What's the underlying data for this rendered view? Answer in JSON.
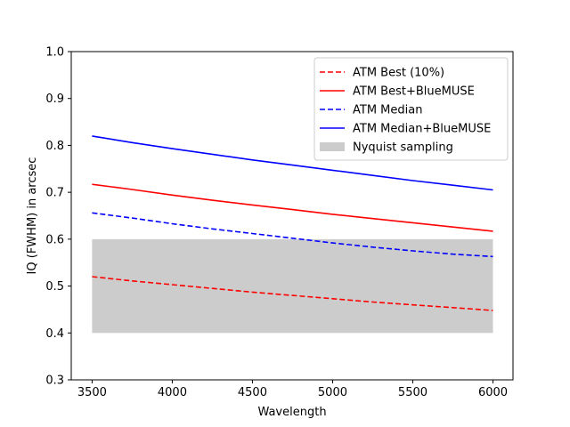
{
  "chart_data": {
    "type": "line",
    "title": "",
    "xlabel": "Wavelength",
    "ylabel": "IQ (FWHM) in arcsec",
    "xlim": [
      3370,
      6125
    ],
    "ylim": [
      0.3,
      1.0
    ],
    "xticks": [
      3500,
      4000,
      4500,
      5000,
      5500,
      6000
    ],
    "yticks": [
      0.3,
      0.4,
      0.5,
      0.6,
      0.7,
      0.8,
      0.9,
      1.0
    ],
    "grid": false,
    "legend_position": "top-right",
    "series": [
      {
        "name": "ATM Best (10%)",
        "style": "dashed",
        "color": "#ff0000",
        "x": [
          3500,
          3750,
          4000,
          4250,
          4500,
          4750,
          5000,
          5250,
          5500,
          5750,
          6000
        ],
        "y": [
          0.52,
          0.511,
          0.503,
          0.495,
          0.487,
          0.48,
          0.473,
          0.466,
          0.46,
          0.454,
          0.448
        ]
      },
      {
        "name": "ATM Best+BlueMUSE",
        "style": "solid",
        "color": "#ff0000",
        "x": [
          3500,
          3750,
          4000,
          4250,
          4500,
          4750,
          5000,
          5250,
          5500,
          5750,
          6000
        ],
        "y": [
          0.717,
          0.706,
          0.694,
          0.683,
          0.673,
          0.663,
          0.653,
          0.644,
          0.635,
          0.626,
          0.617
        ]
      },
      {
        "name": "ATM Median",
        "style": "dashed",
        "color": "#0000ff",
        "x": [
          3500,
          3750,
          4000,
          4250,
          4500,
          4750,
          5000,
          5250,
          5500,
          5750,
          6000
        ],
        "y": [
          0.656,
          0.645,
          0.633,
          0.622,
          0.612,
          0.602,
          0.592,
          0.583,
          0.575,
          0.568,
          0.563
        ]
      },
      {
        "name": "ATM Median+BlueMUSE",
        "style": "solid",
        "color": "#0000ff",
        "x": [
          3500,
          3750,
          4000,
          4250,
          4500,
          4750,
          5000,
          5250,
          5500,
          5750,
          6000
        ],
        "y": [
          0.82,
          0.806,
          0.793,
          0.781,
          0.769,
          0.758,
          0.747,
          0.736,
          0.725,
          0.715,
          0.705
        ]
      }
    ],
    "bands": [
      {
        "name": "Nyquist sampling",
        "color": "#cccccc",
        "x": [
          3500,
          6000
        ],
        "y": [
          0.4,
          0.6
        ]
      }
    ]
  }
}
